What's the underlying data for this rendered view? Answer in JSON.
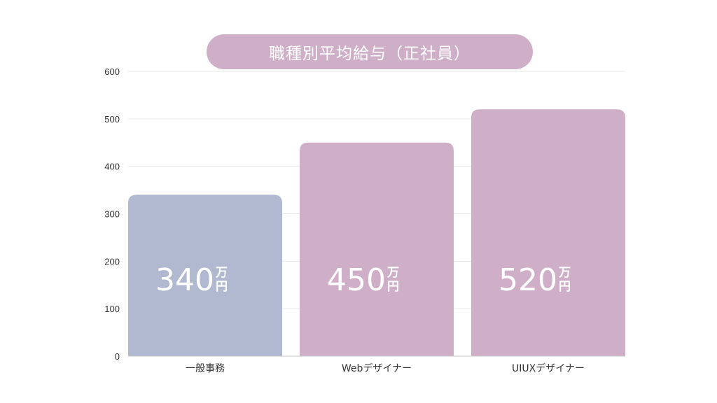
{
  "chart_data": {
    "type": "bar",
    "title": "職種別平均給与（正社員）",
    "categories": [
      "一般事務",
      "Webデザイナー",
      "UIUXデザイナー"
    ],
    "values": [
      340,
      450,
      520
    ],
    "value_labels": [
      "340",
      "450",
      "520"
    ],
    "unit_label": "万円",
    "unit_chars": [
      "万",
      "円"
    ],
    "ylim": [
      0,
      600
    ],
    "yticks": [
      0,
      100,
      200,
      300,
      400,
      500,
      600
    ],
    "ytick_labels": [
      "0",
      "100",
      "200",
      "300",
      "400",
      "500",
      "600"
    ],
    "grid": true,
    "legend": "none",
    "colors": {
      "bars": [
        "#b0b9d0",
        "#cfaec7",
        "#cfaec7"
      ],
      "title_pill": "#cfaec7",
      "grid": "#e6e6e6",
      "axis": "#c8c8c8",
      "value_text": "#ffffff",
      "label_text": "#333333"
    }
  }
}
